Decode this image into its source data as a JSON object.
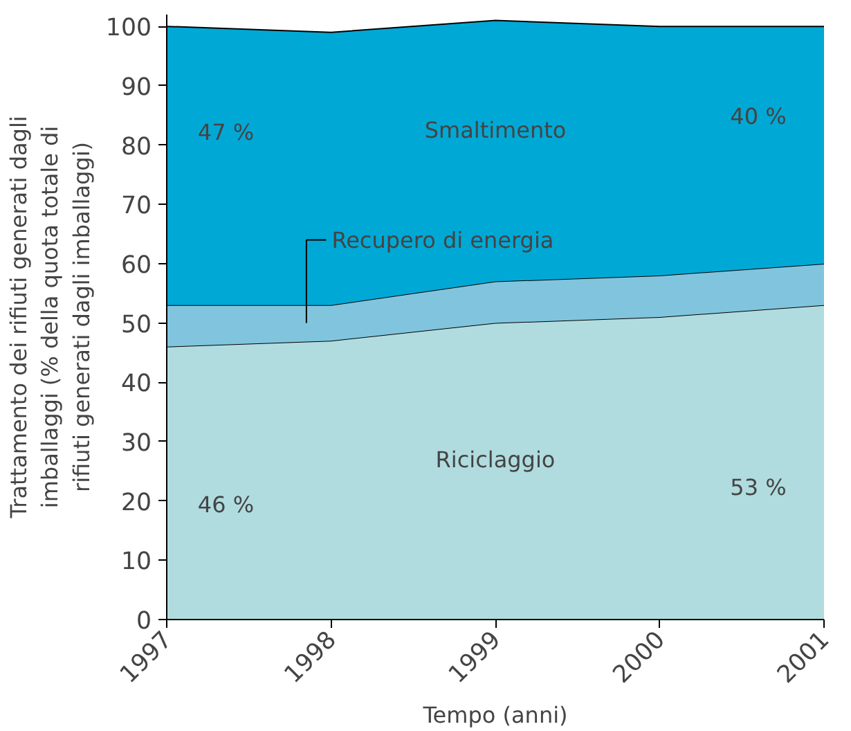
{
  "chart_data": {
    "type": "area",
    "stacked": true,
    "xlabel": "Tempo (anni)",
    "ylabel": "Trattamento dei rifiuti generati dagli imballaggi (% della quota totale di rifiuti generati dagli imballaggi)",
    "x": [
      1997,
      1998,
      1999,
      2000,
      2001
    ],
    "series": [
      {
        "name": "Riciclaggio",
        "color": "#b0dce0",
        "values": [
          46,
          47,
          50,
          51,
          53
        ]
      },
      {
        "name": "Recupero di energia",
        "color": "#80c4de",
        "values": [
          7,
          6,
          7,
          7,
          7
        ]
      },
      {
        "name": "Smaltimento",
        "color": "#00a8d6",
        "values": [
          47,
          46,
          44,
          42,
          40
        ]
      }
    ],
    "xlim": [
      1997,
      2001
    ],
    "xticks": [
      1997,
      1998,
      1999,
      2000,
      2001
    ],
    "ylim": [
      0,
      102
    ],
    "yticks": [
      0,
      10,
      20,
      30,
      40,
      50,
      60,
      70,
      80,
      90,
      100
    ],
    "grid": false,
    "annotations": [
      "47 %",
      "40 %",
      "46 %",
      "53 %"
    ]
  }
}
